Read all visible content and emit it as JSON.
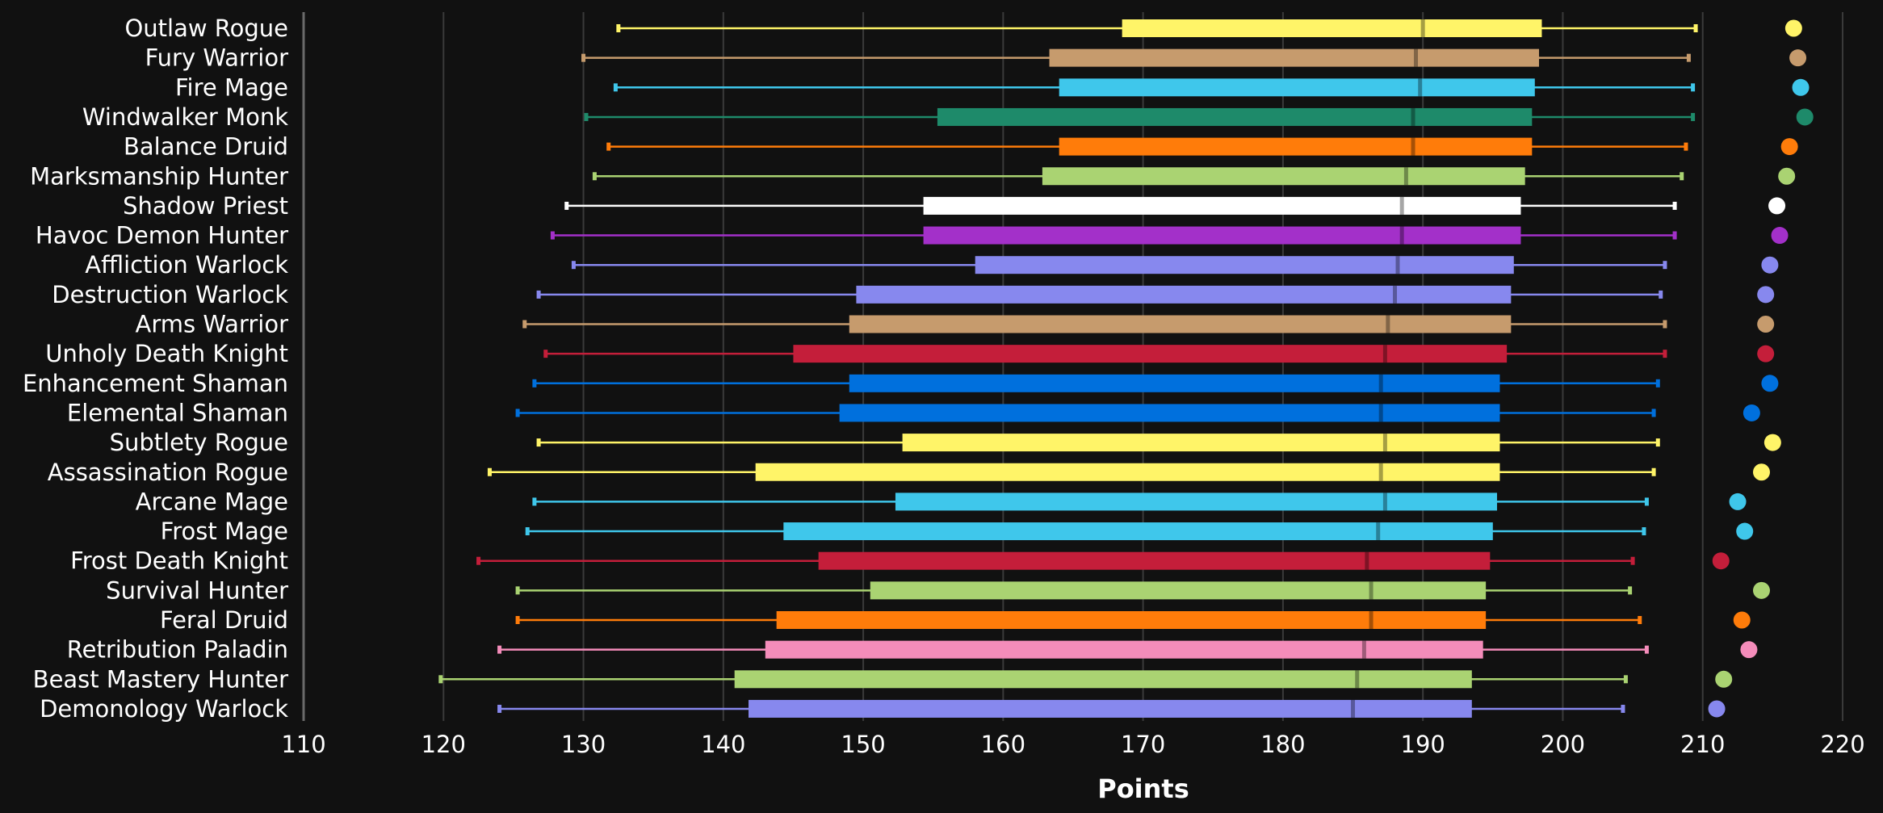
{
  "chart_data": {
    "type": "box",
    "xlabel": "Points",
    "xlim": [
      110,
      220
    ],
    "xticks": [
      110,
      120,
      130,
      140,
      150,
      160,
      170,
      180,
      190,
      200,
      210,
      220
    ],
    "grid": true,
    "categories": [
      "Outlaw Rogue",
      "Fury Warrior",
      "Fire Mage",
      "Windwalker Monk",
      "Balance Druid",
      "Marksmanship Hunter",
      "Shadow Priest",
      "Havoc Demon Hunter",
      "Affliction Warlock",
      "Destruction Warlock",
      "Arms Warrior",
      "Unholy Death Knight",
      "Enhancement Shaman",
      "Elemental Shaman",
      "Subtlety Rogue",
      "Assassination Rogue",
      "Arcane Mage",
      "Frost Mage",
      "Frost Death Knight",
      "Survival Hunter",
      "Feral Druid",
      "Retribution Paladin",
      "Beast Mastery Hunter",
      "Demonology Warlock"
    ],
    "boxes": [
      {
        "min": 132.5,
        "q1": 168.5,
        "median": 190.0,
        "q3": 198.5,
        "max": 209.5,
        "point": 216.5,
        "color": "#FFF468"
      },
      {
        "min": 130.0,
        "q1": 163.3,
        "median": 189.5,
        "q3": 198.3,
        "max": 209.0,
        "point": 216.8,
        "color": "#C69B6D"
      },
      {
        "min": 132.3,
        "q1": 164.0,
        "median": 189.8,
        "q3": 198.0,
        "max": 209.3,
        "point": 217.0,
        "color": "#3FC7EB"
      },
      {
        "min": 130.2,
        "q1": 155.3,
        "median": 189.3,
        "q3": 197.8,
        "max": 209.3,
        "point": 217.3,
        "color": "#1E8A6A"
      },
      {
        "min": 131.8,
        "q1": 164.0,
        "median": 189.3,
        "q3": 197.8,
        "max": 208.8,
        "point": 216.2,
        "color": "#FF7C0A"
      },
      {
        "min": 130.8,
        "q1": 162.8,
        "median": 188.8,
        "q3": 197.3,
        "max": 208.5,
        "point": 216.0,
        "color": "#AAD372"
      },
      {
        "min": 128.8,
        "q1": 154.3,
        "median": 188.5,
        "q3": 197.0,
        "max": 208.0,
        "point": 215.3,
        "color": "#FFFFFF"
      },
      {
        "min": 127.8,
        "q1": 154.3,
        "median": 188.5,
        "q3": 197.0,
        "max": 208.0,
        "point": 215.5,
        "color": "#A330C9"
      },
      {
        "min": 129.3,
        "q1": 158.0,
        "median": 188.2,
        "q3": 196.5,
        "max": 207.3,
        "point": 214.8,
        "color": "#8788EE"
      },
      {
        "min": 126.8,
        "q1": 149.5,
        "median": 188.0,
        "q3": 196.3,
        "max": 207.0,
        "point": 214.5,
        "color": "#8788EE"
      },
      {
        "min": 125.8,
        "q1": 149.0,
        "median": 187.5,
        "q3": 196.3,
        "max": 207.3,
        "point": 214.5,
        "color": "#C69B6D"
      },
      {
        "min": 127.3,
        "q1": 145.0,
        "median": 187.3,
        "q3": 196.0,
        "max": 207.3,
        "point": 214.5,
        "color": "#C41E3A"
      },
      {
        "min": 126.5,
        "q1": 149.0,
        "median": 187.0,
        "q3": 195.5,
        "max": 206.8,
        "point": 214.8,
        "color": "#0070DD"
      },
      {
        "min": 125.3,
        "q1": 148.3,
        "median": 187.0,
        "q3": 195.5,
        "max": 206.5,
        "point": 213.5,
        "color": "#0070DD"
      },
      {
        "min": 126.8,
        "q1": 152.8,
        "median": 187.3,
        "q3": 195.5,
        "max": 206.8,
        "point": 215.0,
        "color": "#FFF468"
      },
      {
        "min": 123.3,
        "q1": 142.3,
        "median": 187.0,
        "q3": 195.5,
        "max": 206.5,
        "point": 214.2,
        "color": "#FFF468"
      },
      {
        "min": 126.5,
        "q1": 152.3,
        "median": 187.3,
        "q3": 195.3,
        "max": 206.0,
        "point": 212.5,
        "color": "#3FC7EB"
      },
      {
        "min": 126.0,
        "q1": 144.3,
        "median": 186.8,
        "q3": 195.0,
        "max": 205.8,
        "point": 213.0,
        "color": "#3FC7EB"
      },
      {
        "min": 122.5,
        "q1": 146.8,
        "median": 186.0,
        "q3": 194.8,
        "max": 205.0,
        "point": 211.3,
        "color": "#C41E3A"
      },
      {
        "min": 125.3,
        "q1": 150.5,
        "median": 186.3,
        "q3": 194.5,
        "max": 204.8,
        "point": 214.2,
        "color": "#AAD372"
      },
      {
        "min": 125.3,
        "q1": 143.8,
        "median": 186.3,
        "q3": 194.5,
        "max": 205.5,
        "point": 212.8,
        "color": "#FF7C0A"
      },
      {
        "min": 124.0,
        "q1": 143.0,
        "median": 185.8,
        "q3": 194.3,
        "max": 206.0,
        "point": 213.3,
        "color": "#F48CBA"
      },
      {
        "min": 119.8,
        "q1": 140.8,
        "median": 185.3,
        "q3": 193.5,
        "max": 204.5,
        "point": 211.5,
        "color": "#AAD372"
      },
      {
        "min": 124.0,
        "q1": 141.8,
        "median": 185.0,
        "q3": 193.5,
        "max": 204.3,
        "point": 211.0,
        "color": "#8788EE"
      }
    ]
  }
}
